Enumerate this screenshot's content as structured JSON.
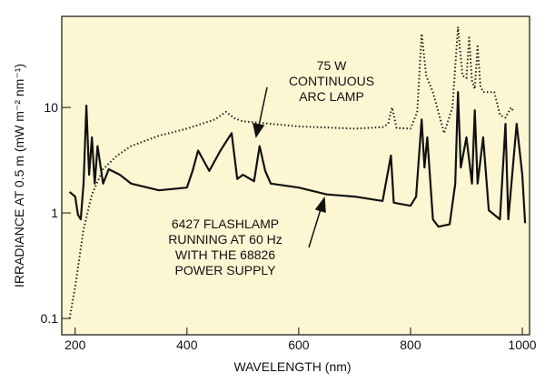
{
  "chart_data": {
    "type": "line",
    "x_label": "WAVELENGTH (nm)",
    "y_label": "IRRADIANCE AT 0.5 m (mW m⁻² nm⁻¹)",
    "ylog": true,
    "xlim": [
      176,
      1013
    ],
    "ylim": [
      0.07,
      73
    ],
    "xticks": [
      200,
      400,
      600,
      800,
      1000
    ],
    "yticks": [
      0.1,
      1,
      10
    ],
    "annotations": [
      {
        "lines": [
          "75 W",
          "CONTINUOUS",
          "ARC LAMP"
        ]
      },
      {
        "lines": [
          "6427 FLASHLAMP",
          "RUNNING AT 60 Hz",
          "WITH THE 68826",
          "POWER SUPPLY"
        ]
      }
    ],
    "series": [
      {
        "color": "#222222",
        "style": "dotted",
        "x": [
          190,
          200,
          215,
          230,
          250,
          275,
          300,
          350,
          400,
          450,
          470,
          485,
          500,
          550,
          600,
          700,
          750,
          760,
          767,
          775,
          800,
          812,
          820,
          828,
          840,
          860,
          875,
          885,
          893,
          900,
          905,
          910,
          915,
          920,
          925,
          930,
          950,
          960,
          970,
          980,
          985
        ],
        "values": [
          0.1,
          0.2,
          0.7,
          1.5,
          2.6,
          3.5,
          4.3,
          5.4,
          6.3,
          7.7,
          9.1,
          7.9,
          7.4,
          7,
          6.6,
          6.3,
          6.5,
          7,
          10,
          6.4,
          6.3,
          9,
          50,
          20,
          14,
          5.7,
          10,
          58,
          20,
          19,
          46,
          18,
          15,
          38,
          16,
          14,
          14,
          8.5,
          8,
          10,
          9
        ]
      },
      {
        "color": "#111111",
        "style": "solid",
        "x": [
          190,
          200,
          205,
          210,
          215,
          220,
          225,
          230,
          235,
          240,
          250,
          260,
          280,
          300,
          350,
          400,
          410,
          420,
          440,
          460,
          480,
          490,
          500,
          520,
          530,
          540,
          550,
          600,
          650,
          700,
          750,
          765,
          770,
          800,
          810,
          820,
          825,
          830,
          840,
          850,
          870,
          880,
          885,
          890,
          900,
          910,
          915,
          920,
          930,
          940,
          960,
          970,
          975,
          990,
          1000,
          1005
        ],
        "values": [
          1.58,
          1.43,
          0.96,
          0.87,
          1.9,
          10.4,
          2.3,
          5.2,
          1.9,
          4.3,
          1.9,
          2.6,
          2.3,
          1.9,
          1.64,
          1.74,
          2.5,
          3.9,
          2.5,
          3.9,
          5.7,
          2.1,
          2.3,
          2,
          4.3,
          2.5,
          1.9,
          1.74,
          1.5,
          1.43,
          1.3,
          3.5,
          1.25,
          1.17,
          1.43,
          7.7,
          2.7,
          5.2,
          0.87,
          0.74,
          0.78,
          1.9,
          14,
          2.7,
          5.2,
          1.9,
          9.4,
          1.9,
          5.2,
          1.06,
          0.87,
          7,
          0.87,
          7,
          2.3,
          0.8
        ]
      }
    ]
  }
}
